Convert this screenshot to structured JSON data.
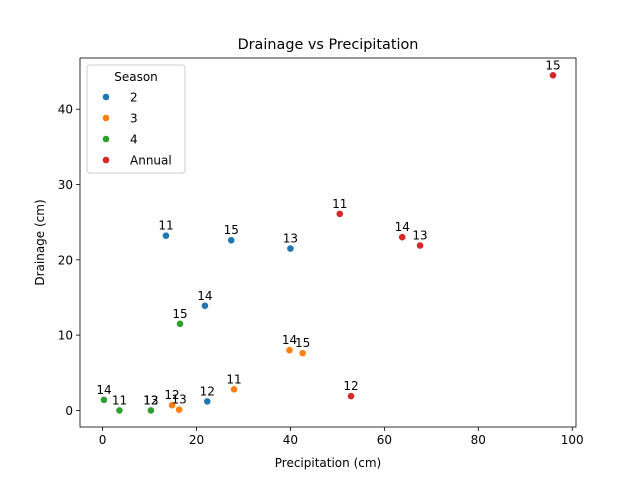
{
  "chart_data": {
    "type": "scatter",
    "title": "Drainage vs Precipitation",
    "xlabel": "Precipitation (cm)",
    "ylabel": "Drainage (cm)",
    "xlim": [
      -4.8,
      100.8
    ],
    "ylim": [
      -2.2,
      46.8
    ],
    "xticks": [
      0,
      20,
      40,
      60,
      80,
      100
    ],
    "yticks": [
      0,
      10,
      20,
      30,
      40
    ],
    "grid": false,
    "legend": {
      "title": "Season",
      "placement": "top-left"
    },
    "series": [
      {
        "name": "2",
        "color": "#1f77b4",
        "points": [
          {
            "x": 13.5,
            "y": 23.2,
            "label": "11"
          },
          {
            "x": 22.3,
            "y": 1.2,
            "label": "12"
          },
          {
            "x": 40.0,
            "y": 21.5,
            "label": "13"
          },
          {
            "x": 21.8,
            "y": 13.9,
            "label": "14"
          },
          {
            "x": 27.4,
            "y": 22.6,
            "label": "15"
          }
        ]
      },
      {
        "name": "3",
        "color": "#ff7f0e",
        "points": [
          {
            "x": 28.0,
            "y": 2.8,
            "label": "11"
          },
          {
            "x": 14.8,
            "y": 0.7,
            "label": "12"
          },
          {
            "x": 16.3,
            "y": 0.1,
            "label": "13"
          },
          {
            "x": 39.8,
            "y": 8.0,
            "label": "14"
          },
          {
            "x": 42.6,
            "y": 7.6,
            "label": "15"
          }
        ]
      },
      {
        "name": "4",
        "color": "#2ca02c",
        "points": [
          {
            "x": 3.6,
            "y": 0.0,
            "label": "11"
          },
          {
            "x": 10.3,
            "y": 0.0,
            "label": "12"
          },
          {
            "x": 10.3,
            "y": 0.0,
            "label": "13"
          },
          {
            "x": 0.3,
            "y": 1.4,
            "label": "14"
          },
          {
            "x": 16.5,
            "y": 11.5,
            "label": "15"
          }
        ]
      },
      {
        "name": "Annual",
        "color": "#d62728",
        "points": [
          {
            "x": 50.5,
            "y": 26.1,
            "label": "11"
          },
          {
            "x": 52.9,
            "y": 1.9,
            "label": "12"
          },
          {
            "x": 67.6,
            "y": 21.9,
            "label": "13"
          },
          {
            "x": 63.8,
            "y": 23.0,
            "label": "14"
          },
          {
            "x": 95.9,
            "y": 44.5,
            "label": "15"
          }
        ]
      }
    ]
  }
}
